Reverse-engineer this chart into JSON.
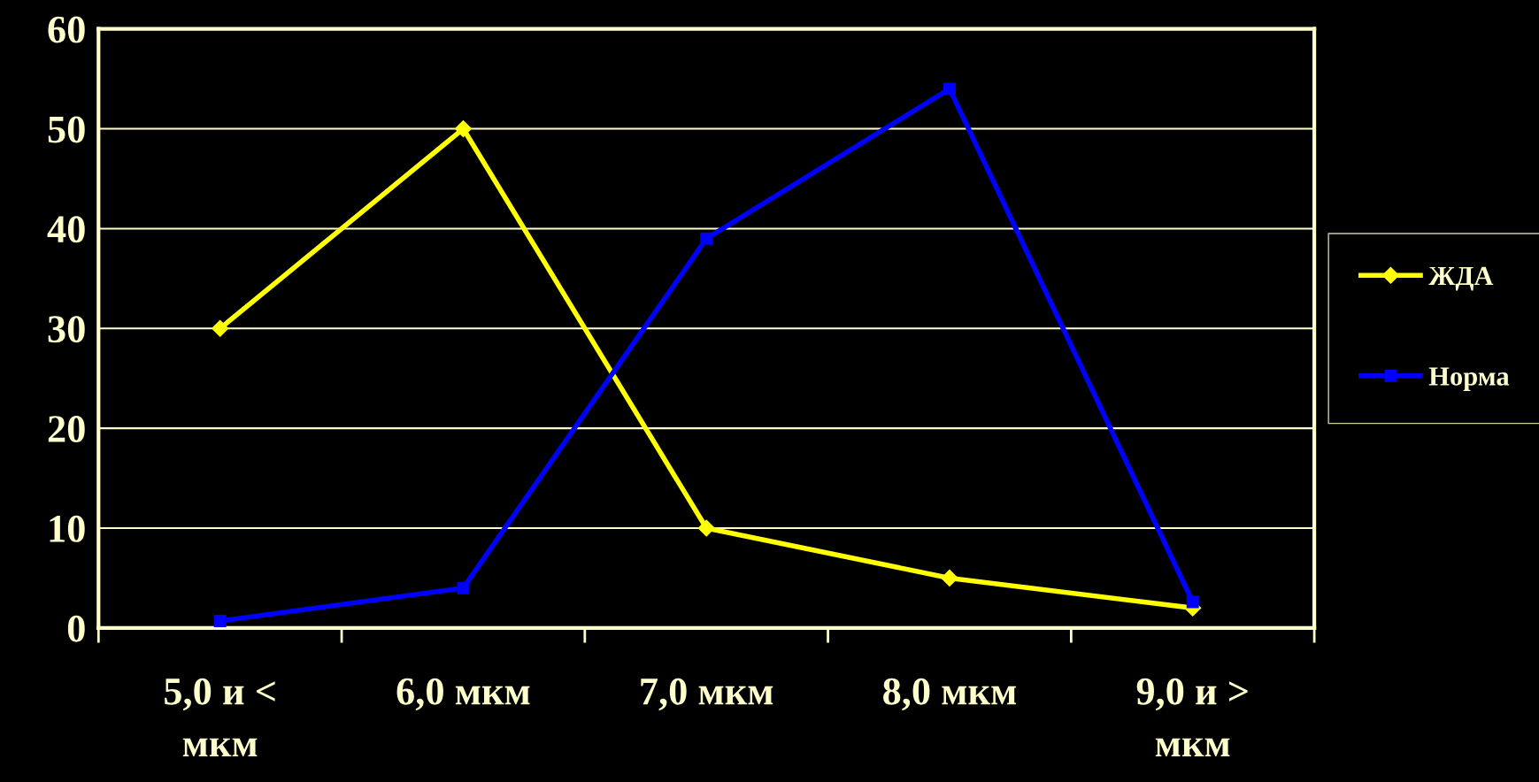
{
  "chart_data": {
    "type": "line",
    "categories": [
      "5,0 и <\nмкм",
      "6,0 мкм",
      "7,0 мкм",
      "8,0 мкм",
      "9,0 и >\nмкм"
    ],
    "series": [
      {
        "name": "ЖДА",
        "color": "#ffff00",
        "values": [
          30,
          50,
          10,
          5,
          2
        ],
        "marker": "diamond"
      },
      {
        "name": "Норма",
        "color": "#0000ff",
        "values": [
          0.7,
          4,
          39,
          54,
          2.6
        ],
        "marker": "square"
      }
    ],
    "ylim": [
      0,
      60
    ],
    "yticks": [
      0,
      10,
      20,
      30,
      40,
      50,
      60
    ],
    "grid": "y",
    "legend": "right",
    "line_style": "solid"
  }
}
